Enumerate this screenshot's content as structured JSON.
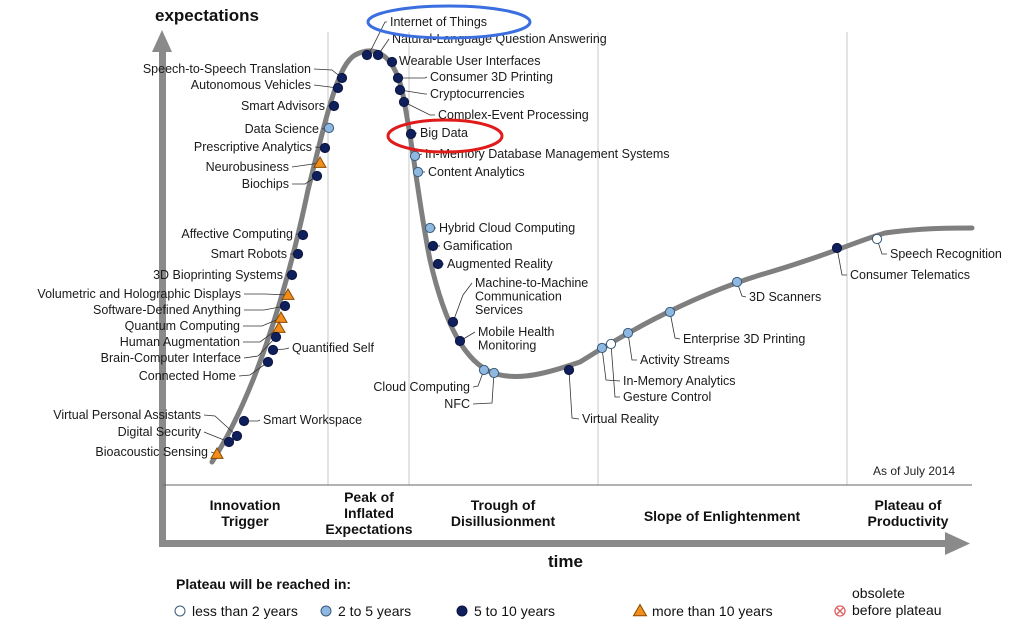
{
  "axes": {
    "y_label": "expectations",
    "x_label": "time"
  },
  "as_of": "As of July 2014",
  "phases": [
    {
      "lines": [
        "Innovation",
        "Trigger"
      ]
    },
    {
      "lines": [
        "Peak of",
        "Inflated",
        "Expectations"
      ]
    },
    {
      "lines": [
        "Trough of",
        "Disillusionment"
      ]
    },
    {
      "lines": [
        "Slope of Enlightenment"
      ]
    },
    {
      "lines": [
        "Plateau of",
        "Productivity"
      ]
    }
  ],
  "legend": {
    "title": "Plateau will be reached in:",
    "items": [
      {
        "key": "lt2",
        "label": "less than 2 years"
      },
      {
        "key": "2to5",
        "label": "2 to 5 years"
      },
      {
        "key": "5to10",
        "label": "5 to 10 years"
      },
      {
        "key": "gt10",
        "label": "more than 10 years"
      },
      {
        "key": "obsolete",
        "lines": [
          "obsolete",
          "before plateau"
        ]
      }
    ]
  },
  "colors": {
    "curve": "#7f7f7f",
    "lt2": "#ffffff",
    "2to5": "#8fb8e0",
    "5to10": "#0f1f5c",
    "gt10": "#f28c1b",
    "obsolete": "#e06060",
    "highlight_blue": "#3b6fe0",
    "highlight_red": "#e01b1b"
  },
  "highlights": [
    {
      "color": "blue",
      "technology": "Internet of Things"
    },
    {
      "color": "red",
      "technology": "Big Data"
    }
  ],
  "technologies": [
    {
      "label": "Internet of Things",
      "category": "5to10"
    },
    {
      "label": "Natural-Language Question Answering",
      "category": "5to10"
    },
    {
      "label": "Wearable User Interfaces",
      "category": "5to10"
    },
    {
      "label": "Consumer 3D Printing",
      "category": "5to10"
    },
    {
      "label": "Cryptocurrencies",
      "category": "5to10"
    },
    {
      "label": "Complex-Event Processing",
      "category": "5to10"
    },
    {
      "label": "Big Data",
      "category": "5to10"
    },
    {
      "label": "In-Memory Database Management Systems",
      "category": "2to5"
    },
    {
      "label": "Content Analytics",
      "category": "2to5"
    },
    {
      "label": "Speech-to-Speech Translation",
      "category": "5to10"
    },
    {
      "label": "Autonomous Vehicles",
      "category": "5to10"
    },
    {
      "label": "Smart Advisors",
      "category": "5to10"
    },
    {
      "label": "Data Science",
      "category": "2to5"
    },
    {
      "label": "Prescriptive Analytics",
      "category": "5to10"
    },
    {
      "label": "Neurobusiness",
      "category": "gt10"
    },
    {
      "label": "Biochips",
      "category": "5to10"
    },
    {
      "label": "Affective  Computing",
      "category": "5to10"
    },
    {
      "label": "Smart Robots",
      "category": "5to10"
    },
    {
      "label": "3D Bioprinting Systems",
      "category": "5to10"
    },
    {
      "label": "Volumetric and Holographic Displays",
      "category": "gt10"
    },
    {
      "label": "Software-Defined Anything",
      "category": "5to10"
    },
    {
      "label": "Quantum Computing",
      "category": "gt10"
    },
    {
      "label": "Human Augmentation",
      "category": "gt10"
    },
    {
      "label": "Brain-Computer Interface",
      "category": "5to10"
    },
    {
      "label": "Quantified Self",
      "category": "5to10"
    },
    {
      "label": "Connected Home",
      "category": "5to10"
    },
    {
      "label": "Virtual Personal Assistants",
      "category": "5to10"
    },
    {
      "label": "Smart Workspace",
      "category": "5to10"
    },
    {
      "label": "Digital Security",
      "category": "5to10"
    },
    {
      "label": "Bioacoustic Sensing",
      "category": "gt10"
    },
    {
      "label": "Hybrid Cloud Computing",
      "category": "2to5"
    },
    {
      "label": "Gamification",
      "category": "5to10"
    },
    {
      "label": "Augmented Reality",
      "category": "5to10"
    },
    {
      "label": "Machine-to-Machine Communication Services",
      "category": "5to10"
    },
    {
      "label": "Mobile Health Monitoring",
      "category": "5to10"
    },
    {
      "label": "Cloud Computing",
      "category": "2to5"
    },
    {
      "label": "NFC",
      "category": "2to5"
    },
    {
      "label": "Virtual Reality",
      "category": "5to10"
    },
    {
      "label": "In-Memory Analytics",
      "category": "2to5"
    },
    {
      "label": "Gesture Control",
      "category": "lt2"
    },
    {
      "label": "Activity  Streams",
      "category": "2to5"
    },
    {
      "label": "Enterprise 3D Printing",
      "category": "2to5"
    },
    {
      "label": "3D Scanners",
      "category": "2to5"
    },
    {
      "label": "Consumer Telematics",
      "category": "5to10"
    },
    {
      "label": "Speech Recognition",
      "category": "lt2"
    }
  ]
}
